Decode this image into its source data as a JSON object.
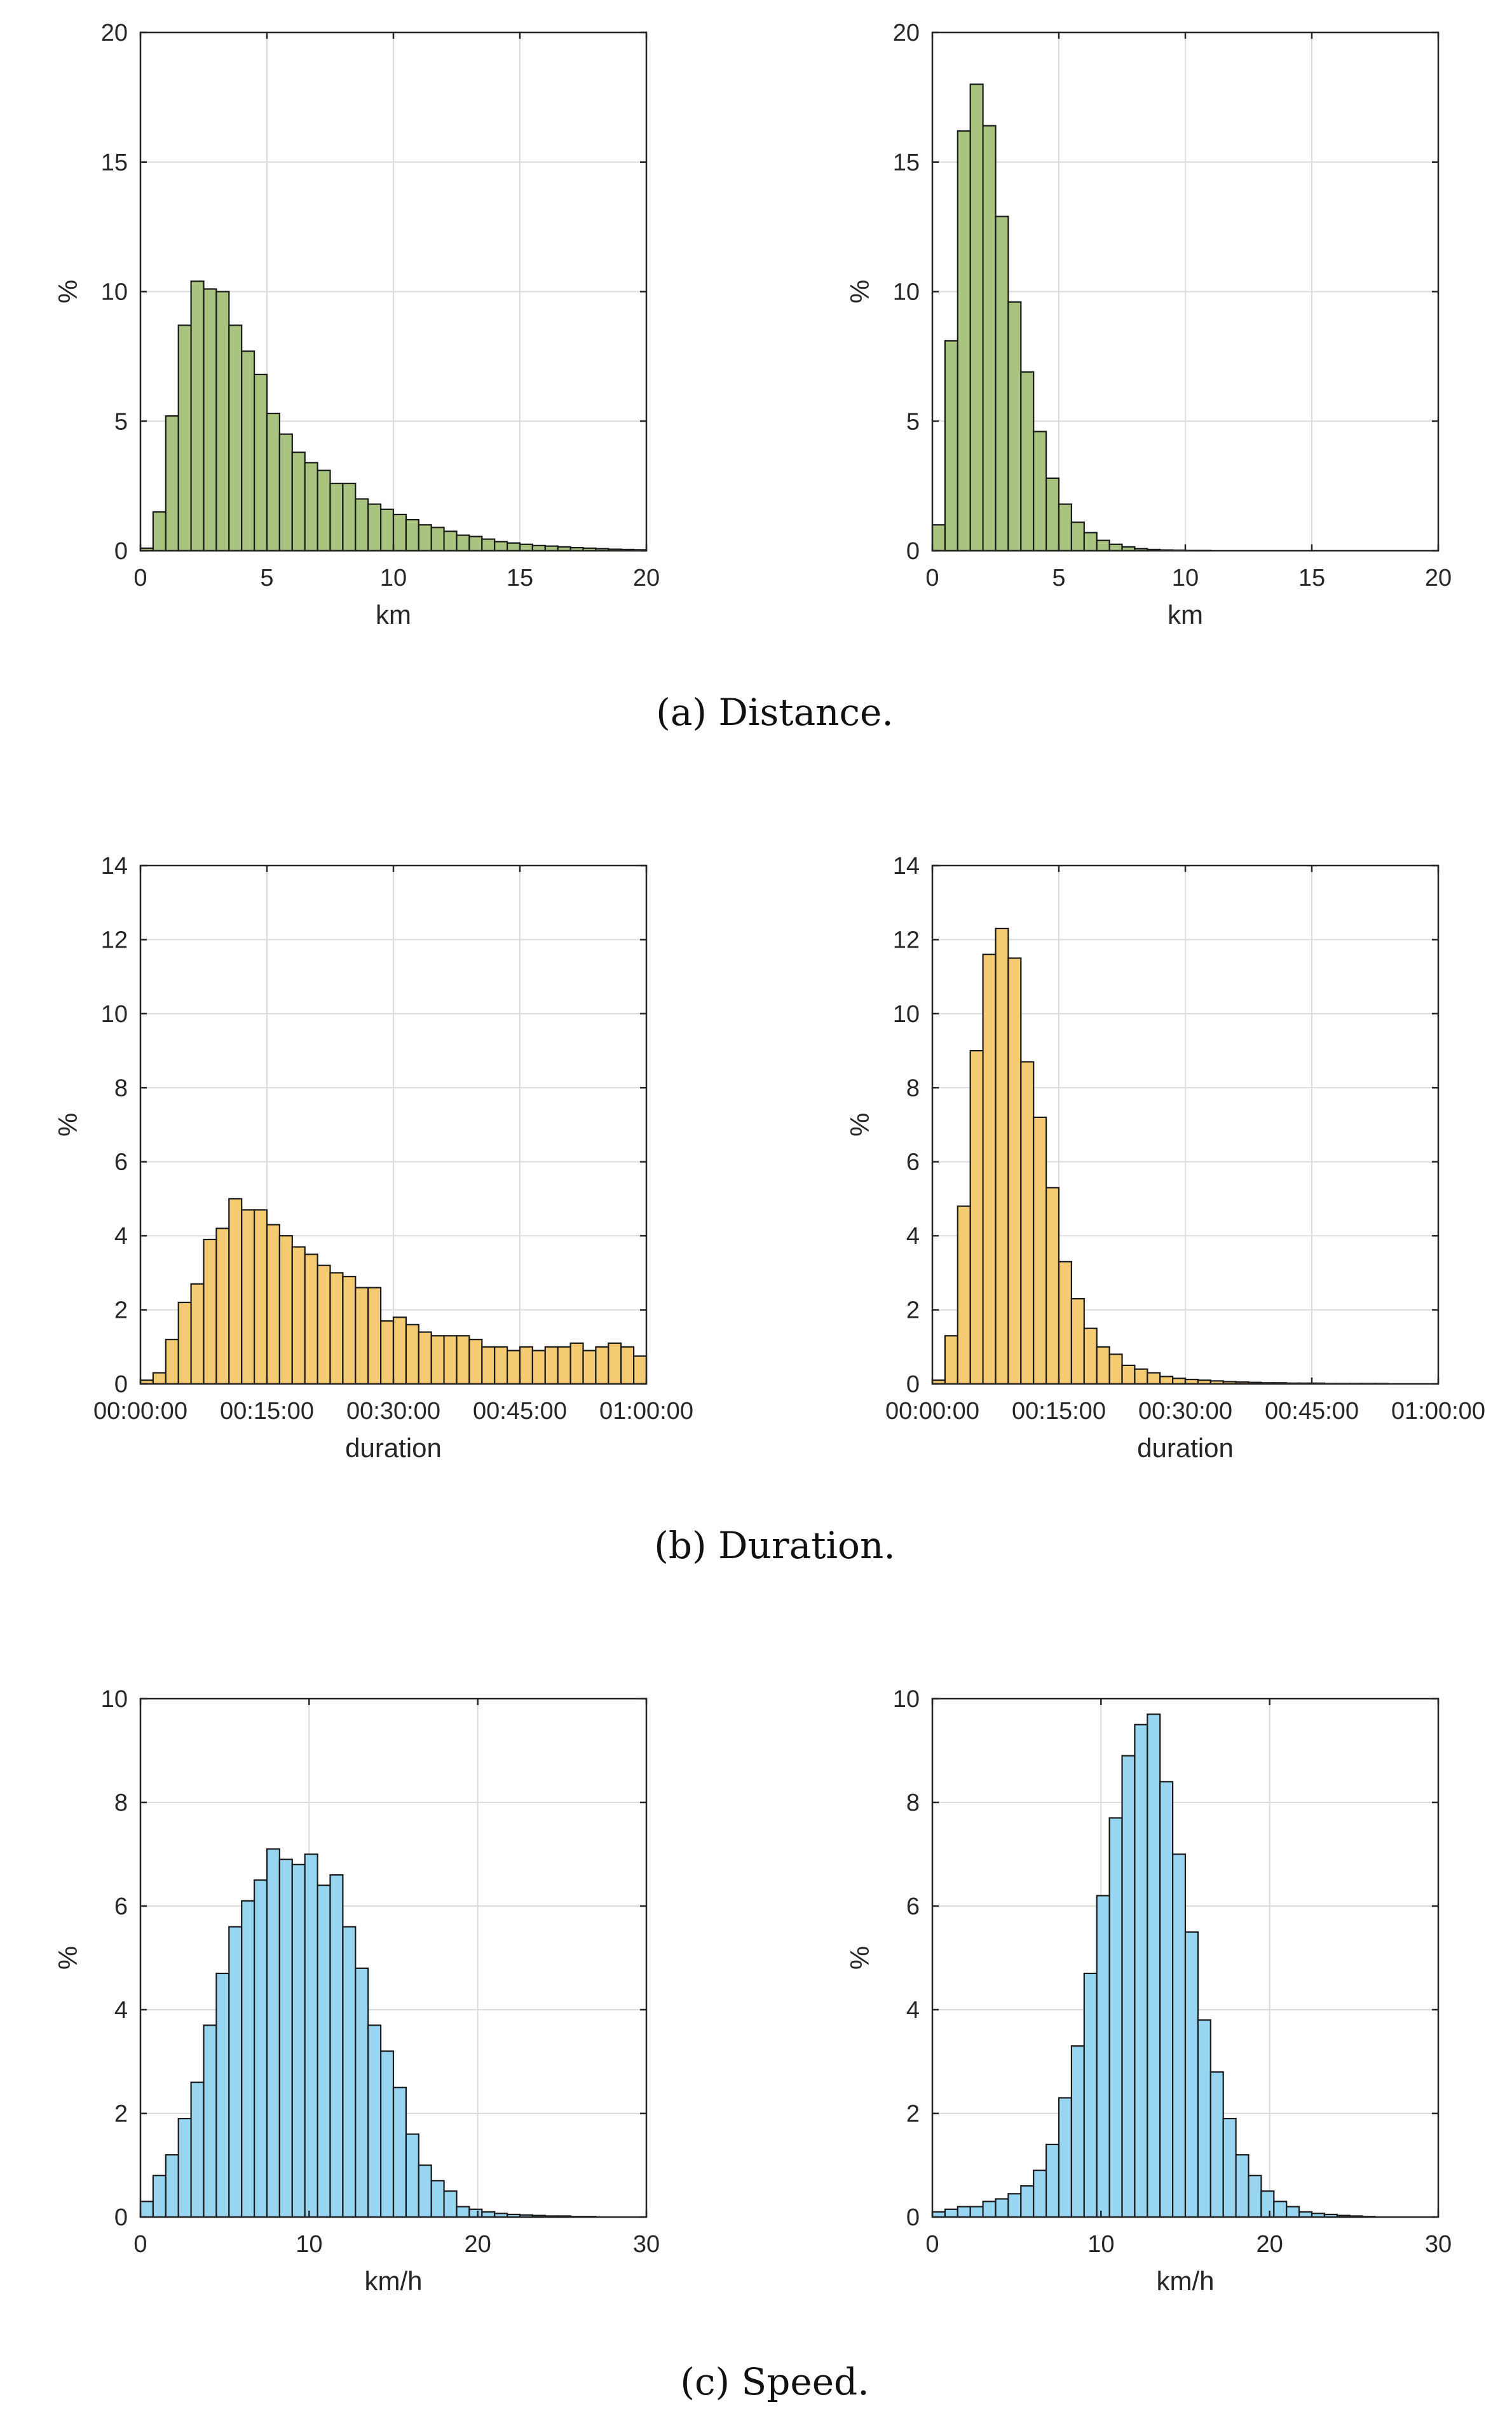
{
  "chart_data": [
    {
      "id": "distance-left",
      "panel": "a",
      "type": "bar",
      "color": "#a9c47f",
      "title": "",
      "xlabel": "km",
      "ylabel": "%",
      "xlim": [
        0,
        20
      ],
      "ylim": [
        0,
        20
      ],
      "xticks": [
        0,
        5,
        10,
        15,
        20
      ],
      "xtick_labels": [
        "0",
        "5",
        "10",
        "15",
        "20"
      ],
      "yticks": [
        0,
        5,
        10,
        15,
        20
      ],
      "ytick_labels": [
        "0",
        "5",
        "10",
        "15",
        "20"
      ],
      "bin_start": 0,
      "bin_width": 0.5,
      "grid": true,
      "values": [
        0.1,
        1.5,
        5.2,
        8.7,
        10.4,
        10.1,
        10.0,
        8.7,
        7.7,
        6.8,
        5.3,
        4.5,
        3.8,
        3.4,
        3.1,
        2.6,
        2.6,
        2.0,
        1.8,
        1.6,
        1.4,
        1.2,
        1.0,
        0.9,
        0.75,
        0.6,
        0.55,
        0.45,
        0.35,
        0.3,
        0.25,
        0.2,
        0.18,
        0.15,
        0.12,
        0.1,
        0.08,
        0.06,
        0.05,
        0.04
      ]
    },
    {
      "id": "distance-right",
      "panel": "a",
      "type": "bar",
      "color": "#a9c47f",
      "title": "",
      "xlabel": "km",
      "ylabel": "%",
      "xlim": [
        0,
        20
      ],
      "ylim": [
        0,
        20
      ],
      "xticks": [
        0,
        5,
        10,
        15,
        20
      ],
      "xtick_labels": [
        "0",
        "5",
        "10",
        "15",
        "20"
      ],
      "yticks": [
        0,
        5,
        10,
        15,
        20
      ],
      "ytick_labels": [
        "0",
        "5",
        "10",
        "15",
        "20"
      ],
      "bin_start": 0,
      "bin_width": 0.5,
      "grid": true,
      "values": [
        1.0,
        8.1,
        16.2,
        18.0,
        16.4,
        12.9,
        9.6,
        6.9,
        4.6,
        2.8,
        1.8,
        1.1,
        0.7,
        0.4,
        0.25,
        0.15,
        0.08,
        0.05,
        0.03,
        0.02,
        0.01,
        0.01,
        0,
        0,
        0,
        0,
        0,
        0,
        0,
        0,
        0,
        0,
        0,
        0,
        0,
        0,
        0,
        0,
        0,
        0
      ]
    },
    {
      "id": "duration-left",
      "panel": "b",
      "type": "bar",
      "color": "#f4cb73",
      "title": "",
      "xlabel": "duration",
      "ylabel": "%",
      "xlim": [
        0,
        60
      ],
      "ylim": [
        0,
        14
      ],
      "xticks": [
        0,
        15,
        30,
        45,
        60
      ],
      "xtick_labels": [
        "00:00:00",
        "00:15:00",
        "00:30:00",
        "00:45:00",
        "01:00:00"
      ],
      "yticks": [
        0,
        2,
        4,
        6,
        8,
        10,
        12,
        14
      ],
      "ytick_labels": [
        "0",
        "2",
        "4",
        "6",
        "8",
        "10",
        "12",
        "14"
      ],
      "bin_start": 0,
      "bin_width": 1.5,
      "grid": true,
      "values": [
        0.1,
        0.3,
        1.2,
        2.2,
        2.7,
        3.9,
        4.2,
        5.0,
        4.7,
        4.7,
        4.3,
        4.0,
        3.7,
        3.5,
        3.2,
        3.0,
        2.9,
        2.6,
        2.6,
        1.7,
        1.8,
        1.6,
        1.4,
        1.3,
        1.3,
        1.3,
        1.2,
        1.0,
        1.0,
        0.9,
        1.0,
        0.9,
        1.0,
        1.0,
        1.1,
        0.9,
        1.0,
        1.1,
        1.0,
        0.75
      ]
    },
    {
      "id": "duration-right",
      "panel": "b",
      "type": "bar",
      "color": "#f4cb73",
      "title": "",
      "xlabel": "duration",
      "ylabel": "%",
      "xlim": [
        0,
        60
      ],
      "ylim": [
        0,
        14
      ],
      "xticks": [
        0,
        15,
        30,
        45,
        60
      ],
      "xtick_labels": [
        "00:00:00",
        "00:15:00",
        "00:30:00",
        "00:45:00",
        "01:00:00"
      ],
      "yticks": [
        0,
        2,
        4,
        6,
        8,
        10,
        12,
        14
      ],
      "ytick_labels": [
        "0",
        "2",
        "4",
        "6",
        "8",
        "10",
        "12",
        "14"
      ],
      "bin_start": 0,
      "bin_width": 1.5,
      "grid": true,
      "values": [
        0.1,
        1.3,
        4.8,
        9.0,
        11.6,
        12.3,
        11.5,
        8.7,
        7.2,
        5.3,
        3.3,
        2.3,
        1.5,
        1.0,
        0.8,
        0.5,
        0.4,
        0.3,
        0.2,
        0.15,
        0.12,
        0.1,
        0.08,
        0.06,
        0.05,
        0.04,
        0.03,
        0.03,
        0.02,
        0.02,
        0.02,
        0.01,
        0.01,
        0.01,
        0.01,
        0.01,
        0,
        0,
        0,
        0
      ]
    },
    {
      "id": "speed-left",
      "panel": "c",
      "type": "bar",
      "color": "#97d5f0",
      "title": "",
      "xlabel": "km/h",
      "ylabel": "%",
      "xlim": [
        0,
        30
      ],
      "ylim": [
        0,
        10
      ],
      "xticks": [
        0,
        10,
        20,
        30
      ],
      "xtick_labels": [
        "0",
        "10",
        "20",
        "30"
      ],
      "yticks": [
        0,
        2,
        4,
        6,
        8,
        10
      ],
      "ytick_labels": [
        "0",
        "2",
        "4",
        "6",
        "8",
        "10"
      ],
      "bin_start": 0,
      "bin_width": 0.75,
      "grid": true,
      "values": [
        0.3,
        0.8,
        1.2,
        1.9,
        2.6,
        3.7,
        4.7,
        5.6,
        6.1,
        6.5,
        7.1,
        6.9,
        6.8,
        7.0,
        6.4,
        6.6,
        5.6,
        4.8,
        3.7,
        3.2,
        2.5,
        1.6,
        1.0,
        0.7,
        0.5,
        0.2,
        0.15,
        0.1,
        0.07,
        0.05,
        0.04,
        0.03,
        0.02,
        0.02,
        0.01,
        0.01,
        0,
        0,
        0,
        0
      ]
    },
    {
      "id": "speed-right",
      "panel": "c",
      "type": "bar",
      "color": "#97d5f0",
      "title": "",
      "xlabel": "km/h",
      "ylabel": "%",
      "xlim": [
        0,
        30
      ],
      "ylim": [
        0,
        10
      ],
      "xticks": [
        0,
        10,
        20,
        30
      ],
      "xtick_labels": [
        "0",
        "10",
        "20",
        "30"
      ],
      "yticks": [
        0,
        2,
        4,
        6,
        8,
        10
      ],
      "ytick_labels": [
        "0",
        "2",
        "4",
        "6",
        "8",
        "10"
      ],
      "bin_start": 0,
      "bin_width": 0.75,
      "grid": true,
      "values": [
        0.1,
        0.15,
        0.2,
        0.2,
        0.3,
        0.35,
        0.45,
        0.6,
        0.9,
        1.4,
        2.3,
        3.3,
        4.7,
        6.2,
        7.7,
        8.9,
        9.5,
        9.7,
        8.4,
        7.0,
        5.5,
        3.8,
        2.8,
        1.9,
        1.2,
        0.8,
        0.5,
        0.3,
        0.2,
        0.1,
        0.07,
        0.05,
        0.03,
        0.02,
        0.01,
        0,
        0,
        0,
        0,
        0
      ]
    }
  ],
  "captions": {
    "a": "(a)  Distance.",
    "b": "(b)  Duration.",
    "c": "(c)  Speed."
  }
}
